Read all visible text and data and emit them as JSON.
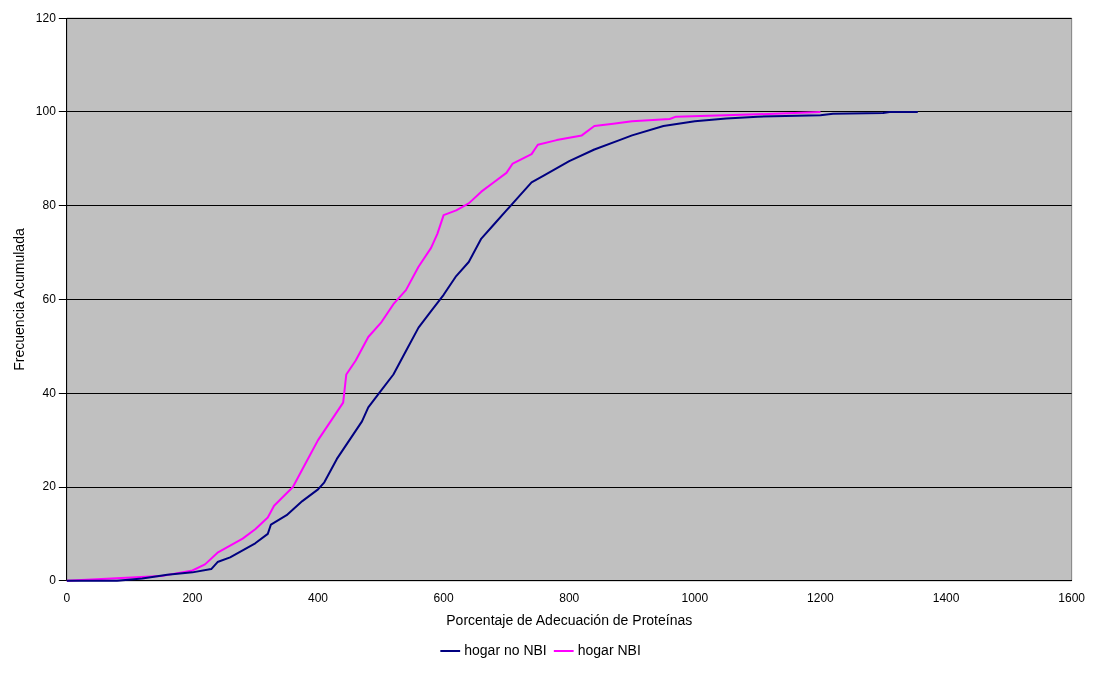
{
  "chart_data": {
    "type": "line",
    "xlabel": "Porcentaje de Adecuación de Proteínas",
    "ylabel": "Frecuencia Acumulada",
    "xlim": [
      0,
      1600
    ],
    "xticks": [
      0,
      200,
      400,
      600,
      800,
      1000,
      1200,
      1400,
      1600
    ],
    "ylim": [
      0,
      120
    ],
    "yticks": [
      0,
      20,
      40,
      60,
      80,
      100,
      120
    ],
    "grid": "y",
    "legend": "bottom",
    "marker": "none",
    "line_style": "solid",
    "series": [
      {
        "name": "hogar no NBI",
        "color": "#000080",
        "x": [
          0,
          80,
          120,
          160,
          200,
          230,
          240,
          260,
          280,
          300,
          320,
          325,
          350,
          375,
          400,
          410,
          430,
          450,
          470,
          480,
          500,
          520,
          540,
          560,
          580,
          600,
          620,
          640,
          660,
          680,
          700,
          720,
          740,
          760,
          800,
          840,
          880,
          900,
          950,
          1000,
          1050,
          1100,
          1200,
          1220,
          1300,
          1310,
          1355
        ],
        "values": [
          0,
          0,
          0.5,
          1.3,
          1.8,
          2.5,
          4,
          5,
          6.5,
          8,
          10,
          12,
          14,
          17,
          19.5,
          21,
          26,
          30,
          34,
          37,
          40.5,
          44,
          49,
          54,
          57.5,
          61,
          65,
          68,
          73,
          76,
          79,
          82,
          85,
          86.5,
          89.5,
          92,
          94,
          95,
          97,
          98,
          98.6,
          99,
          99.3,
          99.6,
          99.8,
          100,
          100
        ]
      },
      {
        "name": "hogar NBI",
        "color": "#ff00ff",
        "x": [
          0,
          150,
          200,
          220,
          240,
          260,
          280,
          300,
          320,
          330,
          360,
          380,
          400,
          420,
          440,
          445,
          460,
          480,
          500,
          520,
          540,
          560,
          580,
          590,
          600,
          620,
          640,
          660,
          680,
          700,
          710,
          740,
          750,
          780,
          820,
          840,
          870,
          900,
          960,
          970,
          1100,
          1200
        ],
        "values": [
          0,
          1,
          2.2,
          3.5,
          6,
          7.5,
          9,
          11,
          13.5,
          16,
          20,
          25,
          30,
          34,
          38,
          44,
          47,
          52,
          55,
          59,
          62,
          67,
          71,
          74,
          78,
          79,
          80.5,
          83,
          85,
          87,
          89,
          91,
          93,
          94,
          95,
          97,
          97.5,
          98,
          98.5,
          99,
          99.5,
          100
        ]
      }
    ]
  }
}
